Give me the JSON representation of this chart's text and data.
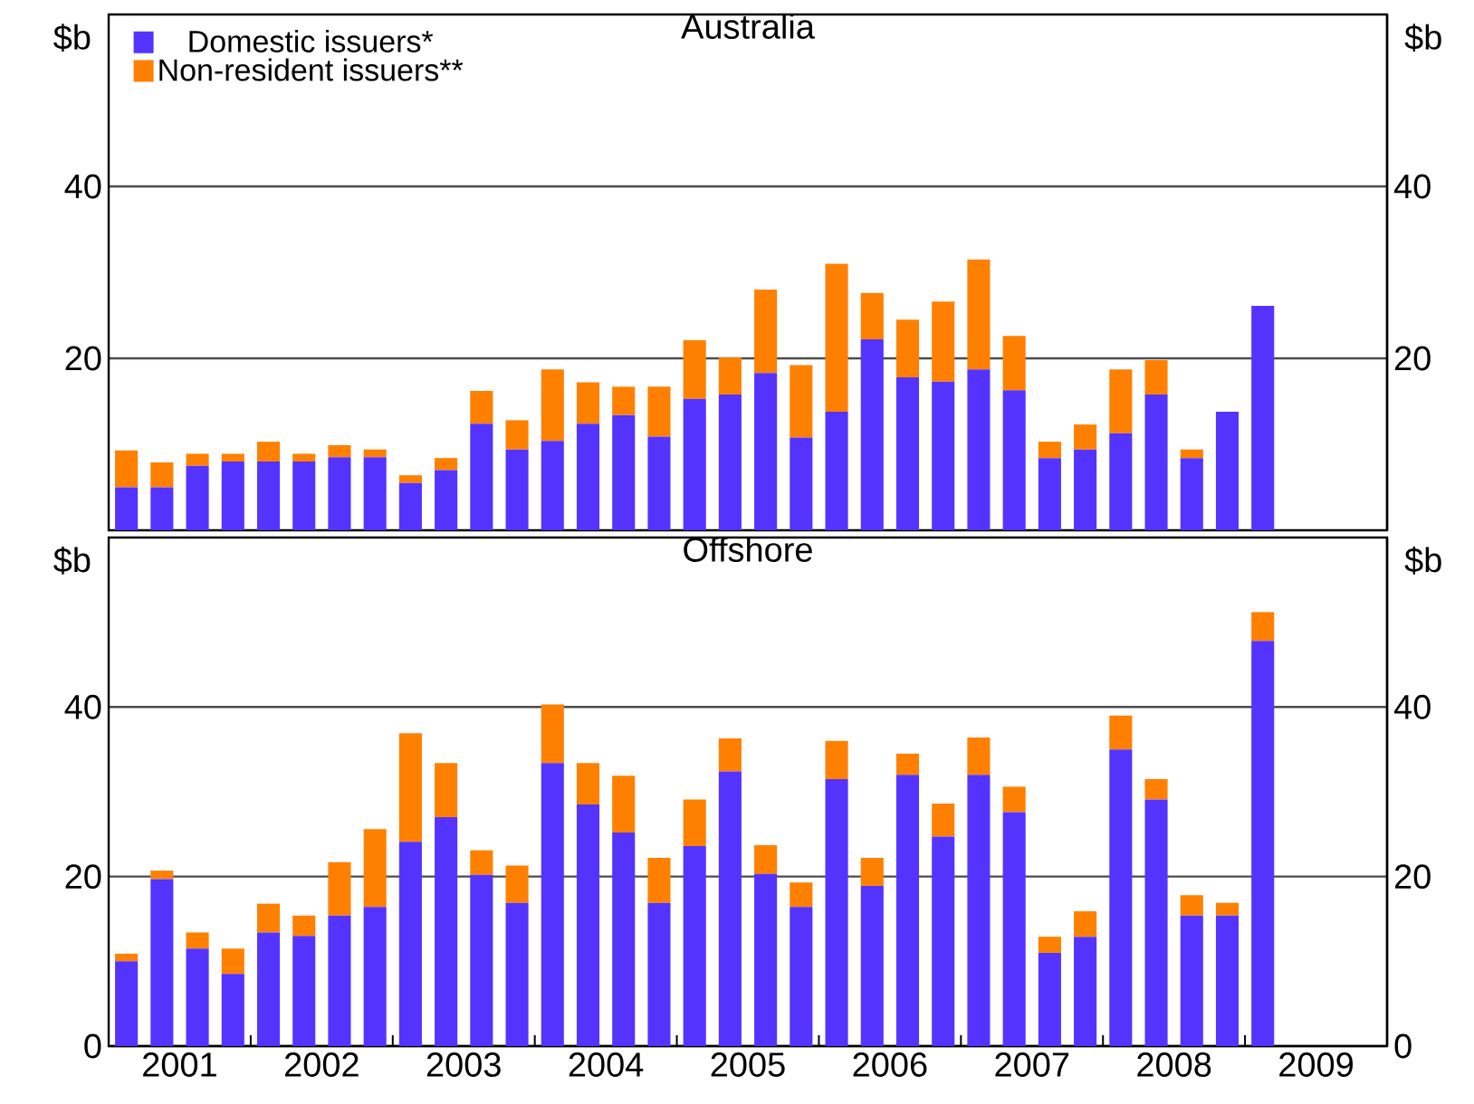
{
  "chart_data": [
    {
      "type": "bar",
      "title": "Australia",
      "stacked": true,
      "legend": "top left",
      "grid": "y",
      "tick_labels": "y",
      "ylabel": "$b",
      "y2label": "$b",
      "x": [
        2001.125,
        2001.375,
        2001.625,
        2001.875,
        2002.125,
        2002.375,
        2002.625,
        2002.875,
        2003.125,
        2003.375,
        2003.625,
        2003.875,
        2004.125,
        2004.375,
        2004.625,
        2004.875,
        2005.125,
        2005.375,
        2005.625,
        2005.875,
        2006.125,
        2006.375,
        2006.625,
        2006.875,
        2007.125,
        2007.375,
        2007.625,
        2007.875,
        2008.125,
        2008.375,
        2008.625,
        2008.875,
        2009.125
      ],
      "xlim": [
        2001,
        2010
      ],
      "ylim": [
        0,
        60
      ],
      "yticks": [
        20,
        40
      ],
      "y2lim": [
        0,
        60
      ],
      "y2ticks": [
        20,
        40
      ],
      "series": [
        {
          "name": "Domestic issuers*",
          "color": "#5533ff",
          "values": [
            5.0,
            5.0,
            7.5,
            8.0,
            8.0,
            8.0,
            8.5,
            8.5,
            5.5,
            7.0,
            12.4,
            9.4,
            10.4,
            12.4,
            13.4,
            10.9,
            15.3,
            15.8,
            18.3,
            10.8,
            13.8,
            22.2,
            17.8,
            17.3,
            18.7,
            16.3,
            8.4,
            9.4,
            11.3,
            15.8,
            8.4,
            13.8,
            26.1
          ]
        },
        {
          "name": "Non-resident issuers**",
          "color": "#ff8000",
          "values": [
            4.3,
            2.9,
            1.4,
            0.9,
            2.3,
            0.9,
            1.4,
            0.9,
            0.9,
            1.4,
            3.8,
            3.4,
            8.3,
            4.8,
            3.3,
            5.8,
            6.8,
            4.3,
            9.7,
            8.4,
            17.2,
            5.4,
            6.7,
            9.3,
            12.8,
            6.3,
            1.9,
            2.9,
            7.4,
            4.0,
            1.0,
            0,
            0
          ]
        }
      ]
    },
    {
      "type": "bar",
      "title": "Offshore",
      "stacked": true,
      "grid": "y",
      "ylabel": "$b",
      "y2label": "$b",
      "x": [
        2001.125,
        2001.375,
        2001.625,
        2001.875,
        2002.125,
        2002.375,
        2002.625,
        2002.875,
        2003.125,
        2003.375,
        2003.625,
        2003.875,
        2004.125,
        2004.375,
        2004.625,
        2004.875,
        2005.125,
        2005.375,
        2005.625,
        2005.875,
        2006.125,
        2006.375,
        2006.625,
        2006.875,
        2007.125,
        2007.375,
        2007.625,
        2007.875,
        2008.125,
        2008.375,
        2008.625,
        2008.875,
        2009.125
      ],
      "xlim": [
        2001,
        2010
      ],
      "xticks": [
        {
          "value": 2001.5,
          "label": "2001"
        },
        {
          "value": 2002.5,
          "label": "2002"
        },
        {
          "value": 2003.5,
          "label": "2003"
        },
        {
          "value": 2004.5,
          "label": "2004"
        },
        {
          "value": 2005.5,
          "label": "2005"
        },
        {
          "value": 2006.5,
          "label": "2006"
        },
        {
          "value": 2007.5,
          "label": "2007"
        },
        {
          "value": 2008.5,
          "label": "2008"
        },
        {
          "value": 2009.5,
          "label": "2009"
        },
        {
          "value": 2002,
          "label": null
        },
        {
          "value": 2003,
          "label": null
        },
        {
          "value": 2004,
          "label": null
        },
        {
          "value": 2005,
          "label": null
        },
        {
          "value": 2006,
          "label": null
        },
        {
          "value": 2007,
          "label": null
        },
        {
          "value": 2008,
          "label": null
        },
        {
          "value": 2009,
          "label": null
        }
      ],
      "ylim": [
        0,
        60
      ],
      "yticks": [
        0,
        20,
        40
      ],
      "y2lim": [
        0,
        60
      ],
      "y2ticks": [
        0,
        20,
        40
      ],
      "series": [
        {
          "color": "#5533ff",
          "values": [
            10.0,
            19.7,
            11.5,
            8.5,
            13.4,
            13.0,
            15.4,
            16.4,
            24.1,
            27.0,
            20.2,
            16.9,
            33.4,
            28.5,
            25.2,
            16.9,
            23.6,
            32.4,
            20.3,
            16.4,
            31.5,
            18.9,
            32.0,
            24.7,
            32.0,
            27.6,
            11.0,
            12.9,
            35.0,
            29.1,
            15.4,
            15.4,
            47.8
          ]
        },
        {
          "color": "#ff8000",
          "values": [
            0.9,
            1.0,
            1.9,
            3.0,
            3.4,
            2.4,
            6.3,
            9.2,
            12.8,
            6.4,
            2.9,
            4.4,
            6.9,
            4.9,
            6.7,
            5.3,
            5.5,
            3.9,
            3.4,
            2.9,
            4.5,
            3.3,
            2.5,
            3.9,
            4.4,
            3.0,
            1.9,
            3.0,
            4.0,
            2.4,
            2.4,
            1.5,
            3.4
          ]
        }
      ]
    }
  ]
}
